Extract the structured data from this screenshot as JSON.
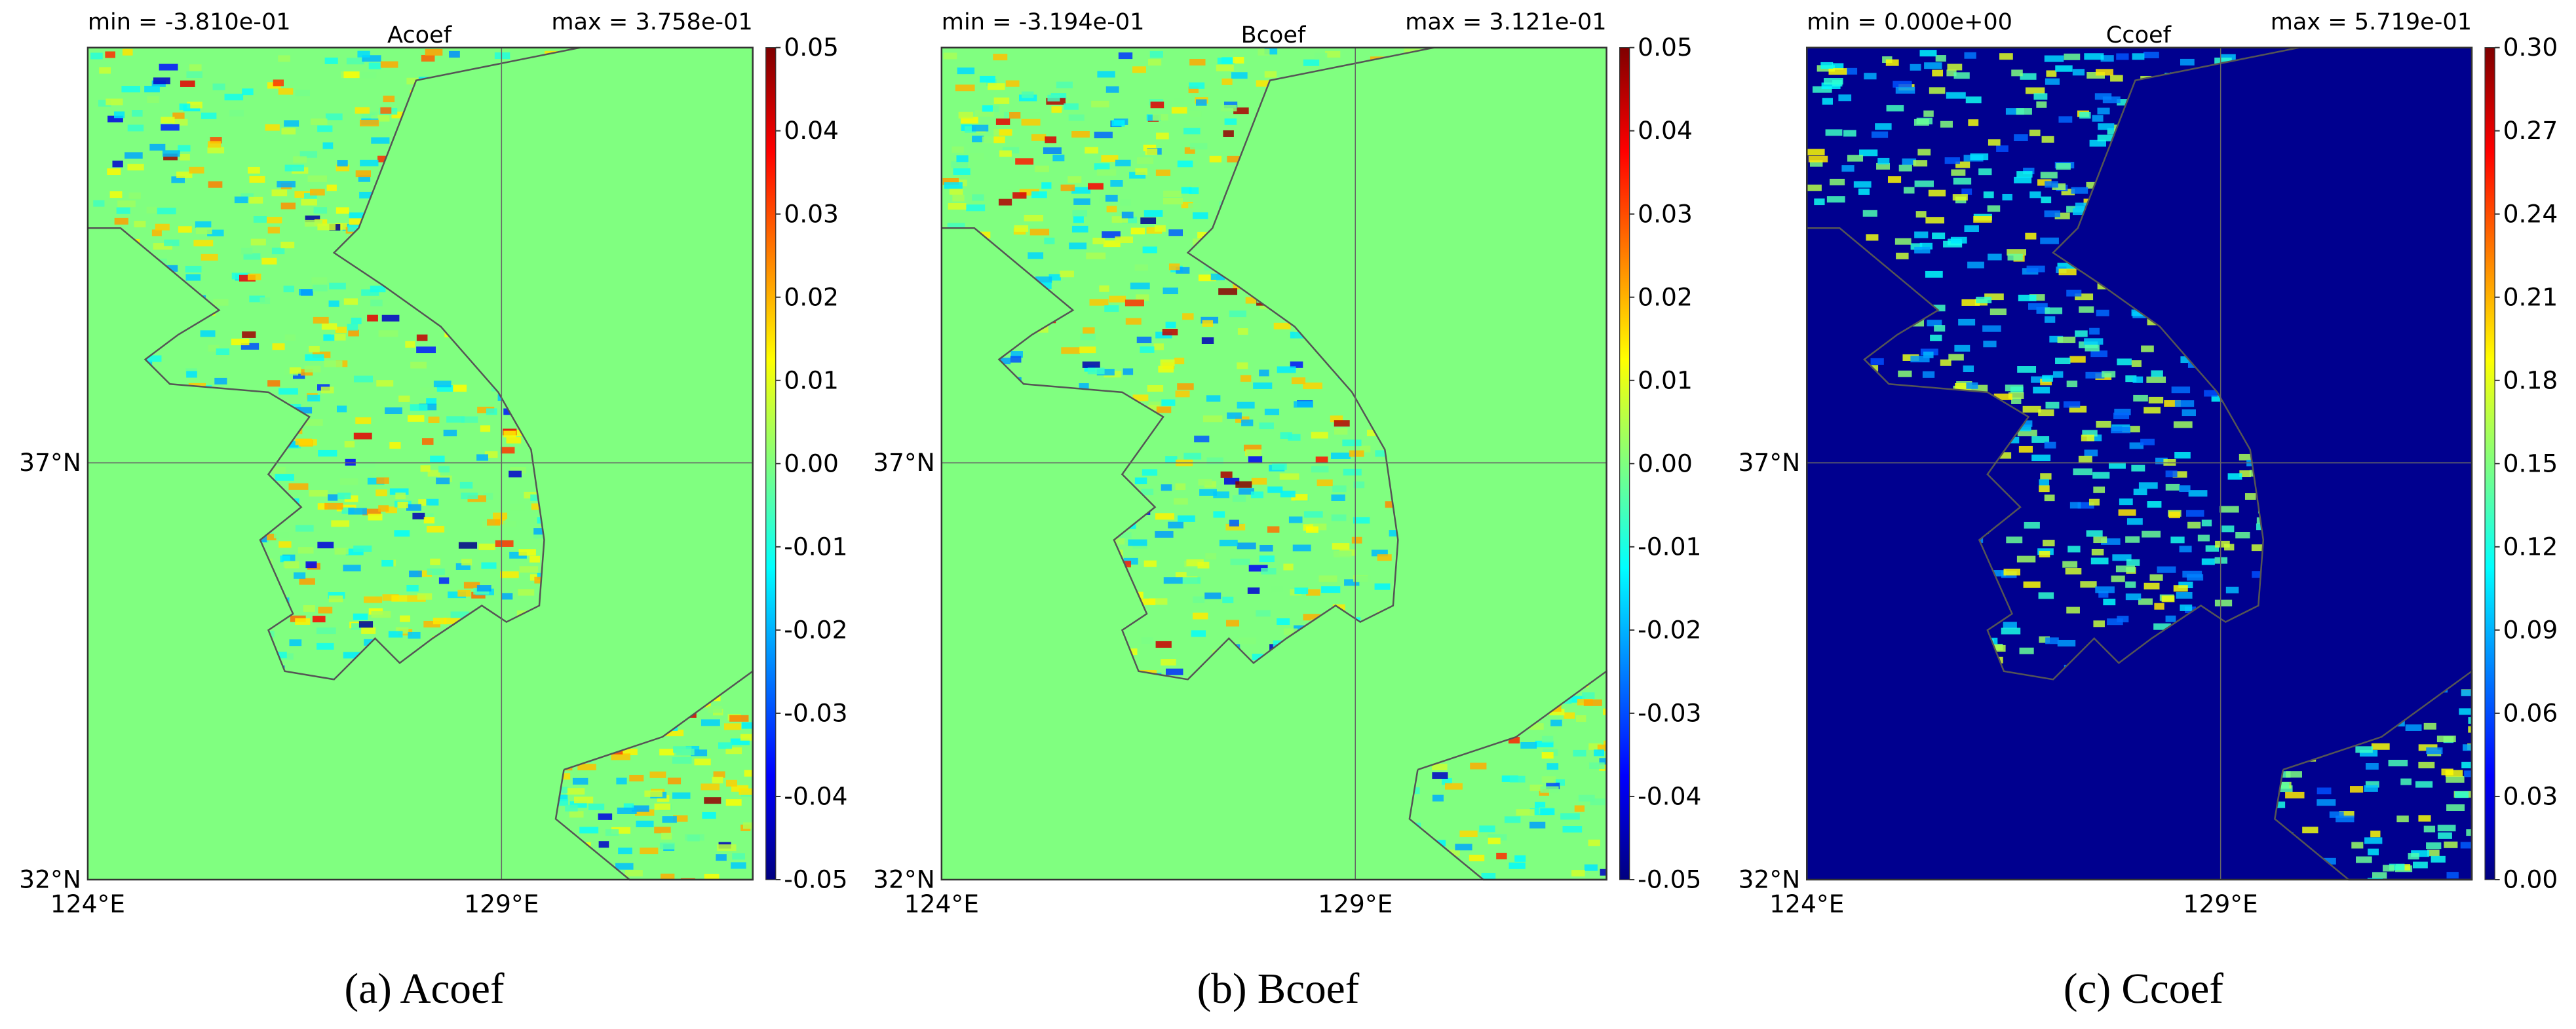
{
  "panels": [
    {
      "label_min": "min = -3.810e-01",
      "title": "Acoef",
      "label_max": "max = 3.758e-01",
      "lat_ticks": [
        "37°N",
        "32°N"
      ],
      "lon_ticks": [
        "124°E",
        "129°E"
      ],
      "colorbar_ticks": [
        "0.05",
        "0.04",
        "0.03",
        "0.02",
        "0.01",
        "0.00",
        "-0.01",
        "-0.02",
        "-0.03",
        "-0.04",
        "-0.05"
      ],
      "caption": "(a) Acoef"
    },
    {
      "label_min": "min = -3.194e-01",
      "title": "Bcoef",
      "label_max": "max = 3.121e-01",
      "lat_ticks": [
        "37°N",
        "32°N"
      ],
      "lon_ticks": [
        "124°E",
        "129°E"
      ],
      "colorbar_ticks": [
        "0.05",
        "0.04",
        "0.03",
        "0.02",
        "0.01",
        "0.00",
        "-0.01",
        "-0.02",
        "-0.03",
        "-0.04",
        "-0.05"
      ],
      "caption": "(b) Bcoef"
    },
    {
      "label_min": "min = 0.000e+00",
      "title": "Ccoef",
      "label_max": "max = 5.719e-01",
      "lat_ticks": [
        "37°N",
        "32°N"
      ],
      "lon_ticks": [
        "124°E",
        "129°E"
      ],
      "colorbar_ticks": [
        "0.30",
        "0.27",
        "0.24",
        "0.21",
        "0.18",
        "0.15",
        "0.12",
        "0.09",
        "0.06",
        "0.03",
        "0.00"
      ],
      "caption": "(c) Ccoef"
    }
  ]
}
